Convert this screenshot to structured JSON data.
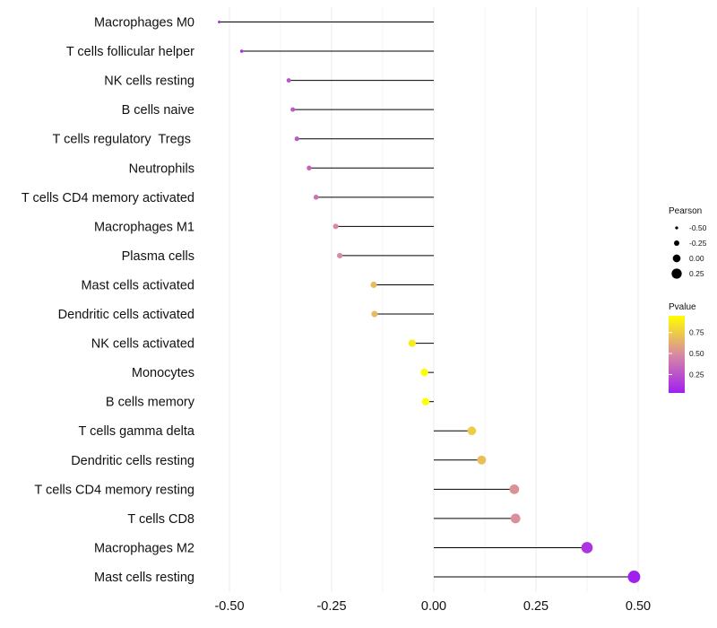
{
  "chart_data": {
    "type": "lollipop",
    "categories": [
      "Macrophages M0",
      "T cells follicular helper",
      "NK cells resting",
      "B cells naive",
      "T cells regulatory  Tregs ",
      "Neutrophils",
      "T cells CD4 memory activated",
      "Macrophages M1",
      "Plasma cells",
      "Mast cells activated",
      "Dendritic cells activated",
      "NK cells activated",
      "Monocytes",
      "B cells memory",
      "T cells gamma delta",
      "Dendritic cells resting",
      "T cells CD4 memory resting",
      "T cells CD8",
      "Macrophages M2",
      "Mast cells resting"
    ],
    "pearson": [
      -0.525,
      -0.47,
      -0.355,
      -0.345,
      -0.335,
      -0.305,
      -0.288,
      -0.24,
      -0.23,
      -0.147,
      -0.145,
      -0.053,
      -0.023,
      -0.02,
      0.093,
      0.117,
      0.197,
      0.2,
      0.375,
      0.49
    ],
    "pvalue": [
      0.08,
      0.12,
      0.25,
      0.27,
      0.27,
      0.33,
      0.38,
      0.48,
      0.5,
      0.68,
      0.68,
      0.88,
      0.95,
      0.95,
      0.75,
      0.7,
      0.52,
      0.51,
      0.12,
      0.03
    ],
    "xlim": [
      -0.53,
      0.53
    ],
    "x_ticks": [
      -0.5,
      -0.25,
      0,
      0.25,
      0.5
    ],
    "x_tick_labels": [
      "-0.50",
      "-0.25",
      "0.00",
      "0.25",
      "0.50"
    ],
    "title": "",
    "xlabel": "",
    "ylabel": "",
    "legend": {
      "size_title": "Pearson",
      "size_values": [
        -0.5,
        -0.25,
        0,
        0.25
      ],
      "size_labels": [
        "-0.50",
        "-0.25",
        "0.00",
        "0.25"
      ],
      "color_title": "Pvalue",
      "color_range": [
        0.03,
        0.95
      ],
      "color_ticks": [
        0.75,
        0.5,
        0.25
      ],
      "color_tick_labels": [
        "0.75",
        "0.50",
        "0.25"
      ],
      "color_low": "#a020f0",
      "color_high": "#ffff00",
      "placement": "right"
    },
    "segment_color": "#000000",
    "grid": true
  }
}
